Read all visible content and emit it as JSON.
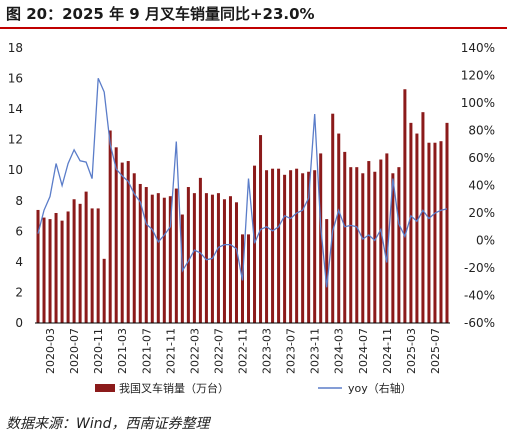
{
  "header": {
    "title": "图 20：2025 年 9 月叉车销量同比+23.0%"
  },
  "footer": {
    "source": "数据来源：Wind，西南证券整理"
  },
  "colors": {
    "bar": "#8b1a1a",
    "line": "#5b7dc9",
    "title_rule": "#c00000",
    "axis": "#000000"
  },
  "chart_data": {
    "type": "bar",
    "title": "",
    "x": [
      "2020-01",
      "2020-02",
      "2020-03",
      "2020-04",
      "2020-05",
      "2020-06",
      "2020-07",
      "2020-08",
      "2020-09",
      "2020-10",
      "2020-11",
      "2020-12",
      "2021-01",
      "2021-02",
      "2021-03",
      "2021-04",
      "2021-05",
      "2021-06",
      "2021-07",
      "2021-08",
      "2021-09",
      "2021-10",
      "2021-11",
      "2021-12",
      "2022-01",
      "2022-02",
      "2022-03",
      "2022-04",
      "2022-05",
      "2022-06",
      "2022-07",
      "2022-08",
      "2022-09",
      "2022-10",
      "2022-11",
      "2022-12",
      "2023-01",
      "2023-02",
      "2023-03",
      "2023-04",
      "2023-05",
      "2023-06",
      "2023-07",
      "2023-08",
      "2023-09",
      "2023-10",
      "2023-11",
      "2023-12",
      "2024-01",
      "2024-02",
      "2024-03",
      "2024-04",
      "2024-05",
      "2024-06",
      "2024-07",
      "2024-08",
      "2024-09",
      "2024-10",
      "2024-11",
      "2024-12",
      "2025-01",
      "2025-02",
      "2025-03",
      "2025-04",
      "2025-05",
      "2025-06",
      "2025-07",
      "2025-08",
      "2025-09"
    ],
    "x_tick_labels": [
      "2020-03",
      "2020-07",
      "2020-11",
      "2021-03",
      "2021-07",
      "2021-11",
      "2022-03",
      "2022-07",
      "2022-11",
      "2023-03",
      "2023-07",
      "2023-11",
      "2024-03",
      "2024-07",
      "2024-11",
      "2025-03",
      "2025-07"
    ],
    "series": [
      {
        "name": "我国叉车销量（万台）",
        "type": "bar",
        "axis": "left",
        "values": [
          7.4,
          6.9,
          6.8,
          7.2,
          6.7,
          7.3,
          8.1,
          7.8,
          8.6,
          7.5,
          7.5,
          4.2,
          12.6,
          11.5,
          10.5,
          10.6,
          9.8,
          9.1,
          8.9,
          8.4,
          8.5,
          8.2,
          8.3,
          8.8,
          7.1,
          8.9,
          8.5,
          9.5,
          8.5,
          8.4,
          8.5,
          8.1,
          8.3,
          7.9,
          5.8,
          5.8,
          10.3,
          12.3,
          10.0,
          10.1,
          10.1,
          9.7,
          10.0,
          10.1,
          9.8,
          9.9,
          10.0,
          11.1,
          6.8,
          13.7,
          12.4,
          11.2,
          10.2,
          10.2,
          9.8,
          10.6,
          9.9,
          10.7,
          11.1,
          9.8,
          10.2,
          15.3,
          13.1,
          12.4,
          13.8,
          11.8,
          11.8,
          11.9,
          13.1
        ]
      },
      {
        "name": "yoy（右轴）",
        "type": "line",
        "axis": "right",
        "values": [
          5,
          22,
          32,
          56,
          40,
          56,
          66,
          58,
          57,
          45,
          118,
          108,
          70,
          52,
          47,
          43,
          34,
          28,
          12,
          8,
          -1,
          4,
          10,
          72,
          -22,
          -15,
          -7,
          -9,
          -14,
          -13,
          -5,
          -3,
          -3,
          -6,
          -29,
          45,
          -2,
          8,
          10,
          7,
          10,
          18,
          16,
          20,
          22,
          31,
          92,
          10,
          -34,
          7,
          22,
          10,
          11,
          10,
          1,
          4,
          0,
          8,
          -16,
          45,
          12,
          3,
          18,
          14,
          22,
          16,
          20,
          22,
          23
        ]
      }
    ],
    "left_axis": {
      "min": 0,
      "max": 18,
      "ticks": [
        0,
        2,
        4,
        6,
        8,
        10,
        12,
        14,
        16,
        18
      ]
    },
    "right_axis": {
      "min": -60,
      "max": 140,
      "ticks": [
        "-60%",
        "-40%",
        "-20%",
        "0%",
        "20%",
        "40%",
        "60%",
        "80%",
        "100%",
        "120%",
        "140%"
      ]
    },
    "legend": {
      "position": "bottom",
      "entries": [
        "我国叉车销量（万台）",
        "yoy（右轴）"
      ]
    },
    "grid": false
  }
}
